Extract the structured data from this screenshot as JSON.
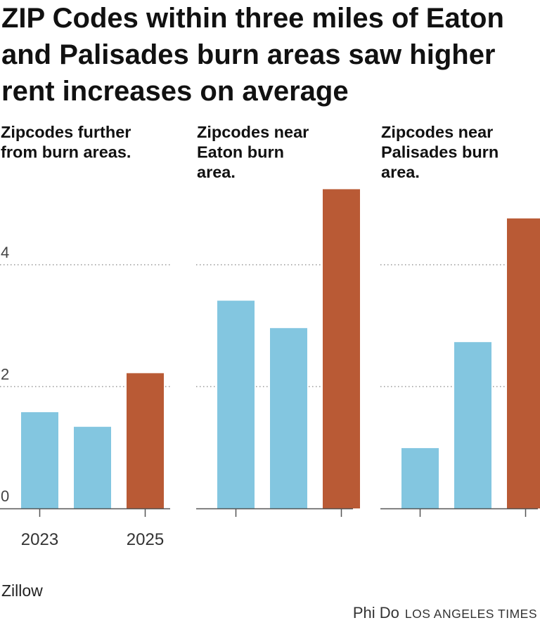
{
  "title": "ZIP Codes within three miles of Eaton and Palisades burn areas saw higher rent increases on average",
  "source": "Zillow",
  "credit": {
    "author": "Phi Do",
    "org": "LOS ANGELES TIMES"
  },
  "colors": {
    "past": "#83c6e0",
    "current": "#b95a35",
    "grid": "#999999",
    "axis": "#555555"
  },
  "chart_data": {
    "type": "bar",
    "y_ticks": [
      0,
      2,
      4
    ],
    "ylim": [
      0,
      5.4
    ],
    "grid": "dotted horizontal at y ticks",
    "x_tick_labels": [
      "2023",
      "",
      "2025"
    ],
    "panels": [
      {
        "title_lines": [
          "Zipcodes further",
          "from burn areas."
        ],
        "values": [
          1.58,
          1.34,
          2.22
        ]
      },
      {
        "title_lines": [
          "Zipcodes near",
          "Eaton burn",
          "area."
        ],
        "values": [
          3.41,
          2.96,
          5.24
        ]
      },
      {
        "title_lines": [
          "Zipcodes near",
          "Palisades burn",
          "area."
        ],
        "values": [
          0.99,
          2.73,
          4.76
        ]
      }
    ],
    "bar_color_roles": [
      "past",
      "past",
      "current"
    ]
  }
}
